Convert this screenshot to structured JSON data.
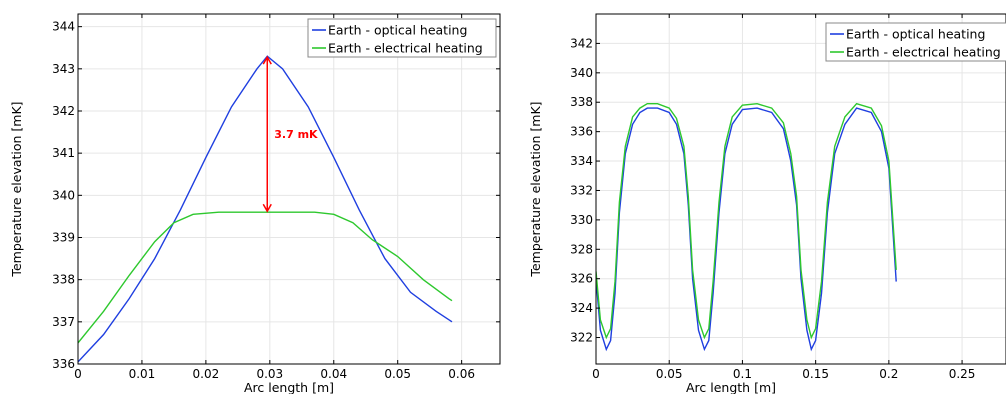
{
  "chart_data": [
    {
      "type": "line",
      "xlabel": "Arc length [m]",
      "ylabel": "Temperature elevation [mK]",
      "xlim": [
        0,
        0.066
      ],
      "ylim": [
        336,
        344.3
      ],
      "x_ticks": [
        "0",
        "0.01",
        "0.02",
        "0.03",
        "0.04",
        "0.05",
        "0.06"
      ],
      "y_ticks": [
        "336",
        "337",
        "338",
        "339",
        "340",
        "341",
        "342",
        "343",
        "344"
      ],
      "grid": true,
      "legend_position": "top-right",
      "annotation": {
        "text": "3.7 mK",
        "x": 0.0296,
        "y_from": 339.6,
        "y_to": 343.3,
        "color": "#ff0000"
      },
      "series": [
        {
          "name": "Earth - optical heating",
          "color": "#1f3fe0",
          "x": [
            0,
            0.004,
            0.008,
            0.012,
            0.016,
            0.02,
            0.024,
            0.028,
            0.0296,
            0.032,
            0.036,
            0.04,
            0.044,
            0.048,
            0.052,
            0.056,
            0.0585
          ],
          "y": [
            336.05,
            336.7,
            337.55,
            338.5,
            339.65,
            340.9,
            342.1,
            343.0,
            343.3,
            343.0,
            342.1,
            340.9,
            339.65,
            338.5,
            337.7,
            337.25,
            337.0
          ]
        },
        {
          "name": "Earth - electrical heating",
          "color": "#2ec82e",
          "x": [
            0,
            0.004,
            0.008,
            0.012,
            0.015,
            0.018,
            0.022,
            0.03,
            0.037,
            0.04,
            0.043,
            0.046,
            0.05,
            0.054,
            0.058,
            0.0585
          ],
          "y": [
            336.5,
            337.25,
            338.1,
            338.9,
            339.35,
            339.55,
            339.6,
            339.6,
            339.6,
            339.55,
            339.35,
            338.95,
            338.55,
            338.0,
            337.55,
            337.5
          ]
        }
      ]
    },
    {
      "type": "line",
      "xlabel": "Arc length [m]",
      "ylabel": "Temperature elevation [mK]",
      "xlim": [
        0,
        0.28
      ],
      "ylim": [
        320.2,
        344
      ],
      "x_ticks": [
        "0",
        "0.05",
        "0.1",
        "0.15",
        "0.2",
        "0.25"
      ],
      "y_ticks": [
        "322",
        "324",
        "326",
        "328",
        "330",
        "332",
        "334",
        "336",
        "338",
        "340",
        "342"
      ],
      "grid": true,
      "legend_position": "top-right",
      "series": [
        {
          "name": "Earth - optical heating",
          "color": "#1f3fe0",
          "x": [
            0,
            0.003,
            0.007,
            0.01,
            0.013,
            0.016,
            0.02,
            0.025,
            0.03,
            0.035,
            0.042,
            0.05,
            0.055,
            0.06,
            0.063,
            0.066,
            0.07,
            0.074,
            0.077,
            0.08,
            0.084,
            0.088,
            0.093,
            0.1,
            0.11,
            0.12,
            0.128,
            0.133,
            0.137,
            0.14,
            0.144,
            0.147,
            0.15,
            0.154,
            0.158,
            0.163,
            0.17,
            0.178,
            0.188,
            0.195,
            0.2,
            0.205
          ],
          "y": [
            326,
            322.5,
            321.2,
            321.8,
            325,
            330.5,
            334.5,
            336.5,
            337.3,
            337.6,
            337.6,
            337.3,
            336.5,
            334.5,
            331,
            326,
            322.5,
            321.2,
            321.8,
            325,
            330.5,
            334.5,
            336.5,
            337.5,
            337.6,
            337.3,
            336.2,
            334,
            331,
            326,
            322.5,
            321.2,
            321.8,
            325,
            330.5,
            334.5,
            336.5,
            337.6,
            337.3,
            336,
            333.5,
            325.8
          ]
        },
        {
          "name": "Earth - electrical heating",
          "color": "#2ec82e",
          "x": [
            0,
            0.003,
            0.007,
            0.01,
            0.013,
            0.016,
            0.02,
            0.025,
            0.03,
            0.035,
            0.042,
            0.05,
            0.055,
            0.06,
            0.063,
            0.066,
            0.07,
            0.074,
            0.077,
            0.08,
            0.084,
            0.088,
            0.093,
            0.1,
            0.11,
            0.12,
            0.128,
            0.133,
            0.137,
            0.14,
            0.144,
            0.147,
            0.15,
            0.154,
            0.158,
            0.163,
            0.17,
            0.178,
            0.188,
            0.195,
            0.2,
            0.205
          ],
          "y": [
            326.5,
            323.2,
            322.0,
            322.6,
            325.8,
            331.2,
            335,
            337,
            337.6,
            337.9,
            337.9,
            337.6,
            336.9,
            335,
            331.6,
            326.6,
            323.2,
            322.0,
            322.6,
            325.8,
            331.2,
            335,
            337,
            337.8,
            337.9,
            337.6,
            336.6,
            334.5,
            331.6,
            326.6,
            323.2,
            322.0,
            322.6,
            325.8,
            331.2,
            335,
            337,
            337.9,
            337.6,
            336.4,
            334,
            326.6
          ]
        }
      ]
    }
  ]
}
